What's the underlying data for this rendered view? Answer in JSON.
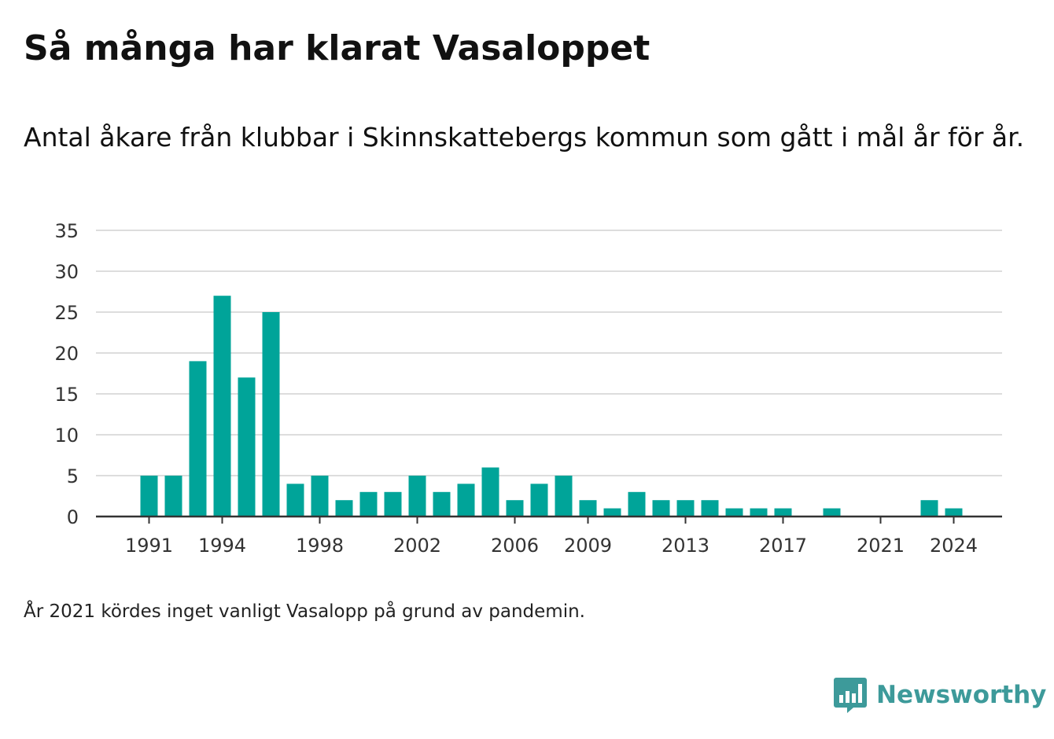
{
  "title": "Så många har klarat Vasaloppet",
  "subtitle": "Antal åkare från klubbar i Skinnskattebergs kommun som gått i mål år för år.",
  "note": "År 2021 kördes inget vanligt Vasalopp på grund av pandemin.",
  "brand": {
    "name": "Newsworthy",
    "icon": "newsworthy-logo-icon",
    "color": "#3d9a9a"
  },
  "chart_data": {
    "type": "bar",
    "title": "Så många har klarat Vasaloppet",
    "subtitle": "Antal åkare från klubbar i Skinnskattebergs kommun som gått i mål år för år.",
    "xlabel": "",
    "ylabel": "",
    "ylim": [
      0,
      35
    ],
    "yticks": [
      0,
      5,
      10,
      15,
      20,
      25,
      30,
      35
    ],
    "xticks": [
      "1991",
      "1994",
      "1998",
      "2002",
      "2006",
      "2009",
      "2013",
      "2017",
      "2021",
      "2024"
    ],
    "grid": true,
    "bar_color": "#00a499",
    "categories": [
      "1991",
      "1992",
      "1993",
      "1994",
      "1995",
      "1996",
      "1997",
      "1998",
      "1999",
      "2000",
      "2001",
      "2002",
      "2003",
      "2004",
      "2005",
      "2006",
      "2007",
      "2008",
      "2009",
      "2010",
      "2011",
      "2012",
      "2013",
      "2014",
      "2015",
      "2016",
      "2017",
      "2018",
      "2019",
      "2020",
      "2021",
      "2022",
      "2023",
      "2024"
    ],
    "values": [
      5,
      5,
      19,
      27,
      17,
      25,
      4,
      5,
      2,
      3,
      3,
      5,
      3,
      4,
      6,
      2,
      4,
      5,
      2,
      1,
      3,
      2,
      2,
      2,
      1,
      1,
      1,
      0,
      1,
      0,
      0,
      0,
      2,
      1
    ]
  }
}
